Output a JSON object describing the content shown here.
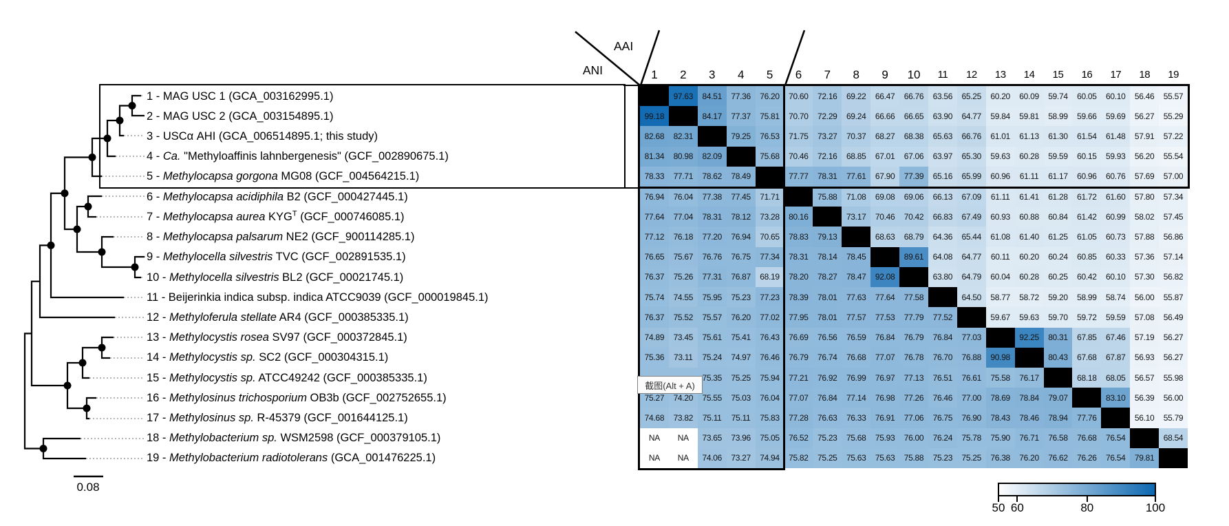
{
  "header": {
    "ani_label": "ANI",
    "aai_label": "AAI"
  },
  "tree": {
    "scale_bar_label": "0.08",
    "taxa": [
      {
        "segments": [
          {
            "t": "1 - MAG USC 1 (GCA_003162995.1)"
          }
        ]
      },
      {
        "segments": [
          {
            "t": "2 - MAG USC 2 (GCA_003154895.1)"
          }
        ]
      },
      {
        "segments": [
          {
            "t": "3 - USCα AHI (GCA_006514895.1; this study)"
          }
        ]
      },
      {
        "segments": [
          {
            "t": "4 - "
          },
          {
            "t": "Ca.",
            "i": 1
          },
          {
            "t": " \"Methyloaffinis lahnbergenesis\" (GCF_002890675.1)"
          }
        ]
      },
      {
        "segments": [
          {
            "t": "5 - "
          },
          {
            "t": "Methylocapsa gorgona",
            "i": 1
          },
          {
            "t": " MG08 (GCF_004564215.1)"
          }
        ]
      },
      {
        "segments": [
          {
            "t": "6 - "
          },
          {
            "t": "Methylocapsa acidiphila",
            "i": 1
          },
          {
            "t": " B2 (GCF_000427445.1)"
          }
        ]
      },
      {
        "segments": [
          {
            "t": "7 - "
          },
          {
            "t": "Methylocapsa aurea",
            "i": 1
          },
          {
            "t": " KYG"
          },
          {
            "t": "T",
            "sup": 1
          },
          {
            "t": " (GCF_000746085.1)"
          }
        ]
      },
      {
        "segments": [
          {
            "t": "8 - "
          },
          {
            "t": "Methylocapsa palsarum",
            "i": 1
          },
          {
            "t": " NE2 (GCF_900114285.1)"
          }
        ]
      },
      {
        "segments": [
          {
            "t": "9 - "
          },
          {
            "t": "Methylocella silvestris",
            "i": 1
          },
          {
            "t": " TVC (GCF_002891535.1)"
          }
        ]
      },
      {
        "segments": [
          {
            "t": "10 - "
          },
          {
            "t": "Methylocella silvestris",
            "i": 1
          },
          {
            "t": " BL2 (GCF_00021745.1)"
          }
        ]
      },
      {
        "segments": [
          {
            "t": "11 - Beijerinkia indica subsp. indica ATCC9039 (GCF_000019845.1)"
          }
        ]
      },
      {
        "segments": [
          {
            "t": "12 - "
          },
          {
            "t": "Methyloferula stellate",
            "i": 1
          },
          {
            "t": " AR4 (GCF_000385335.1)"
          }
        ]
      },
      {
        "segments": [
          {
            "t": "13 - "
          },
          {
            "t": "Methylocystis rosea",
            "i": 1
          },
          {
            "t": " SV97 (GCF_000372845.1)"
          }
        ]
      },
      {
        "segments": [
          {
            "t": "14 - "
          },
          {
            "t": "Methylocystis sp.",
            "i": 1
          },
          {
            "t": " SC2 (GCF_000304315.1)"
          }
        ]
      },
      {
        "segments": [
          {
            "t": "15 - "
          },
          {
            "t": "Methylocystis sp.",
            "i": 1
          },
          {
            "t": " ATCC49242 (GCF_000385335.1)"
          }
        ]
      },
      {
        "segments": [
          {
            "t": "16 - "
          },
          {
            "t": "Methylosinus trichosporium",
            "i": 1
          },
          {
            "t": " OB3b (GCF_002752655.1)"
          }
        ]
      },
      {
        "segments": [
          {
            "t": "17 - "
          },
          {
            "t": "Methylosinus sp.",
            "i": 1
          },
          {
            "t": " R-45379 (GCF_001644125.1)"
          }
        ]
      },
      {
        "segments": [
          {
            "t": "18 - "
          },
          {
            "t": "Methylobacterium sp.",
            "i": 1
          },
          {
            "t": " WSM2598 (GCF_000379105.1)"
          }
        ]
      },
      {
        "segments": [
          {
            "t": "19 - "
          },
          {
            "t": "Methylobacterium radiotolerans",
            "i": 1
          },
          {
            "t": " (GCA_001476225.1)"
          }
        ]
      }
    ]
  },
  "chart_data": {
    "type": "heatmap",
    "description": "Pairwise genome identity matrix: ANI values in lower-left triangle, AAI values in upper-right triangle; black diagonal = self; rows/columns follow tree taxa 1-19",
    "lower_triangle_label": "ANI",
    "upper_triangle_label": "AAI",
    "col_headers": [
      "1",
      "2",
      "3",
      "4",
      "5",
      "6",
      "7",
      "8",
      "9",
      "10",
      "11",
      "12",
      "13",
      "14",
      "15",
      "16",
      "17",
      "18",
      "19"
    ],
    "na_text": "NA",
    "values": [
      [
        null,
        97.63,
        84.51,
        77.36,
        76.2,
        70.6,
        72.16,
        69.22,
        66.47,
        66.76,
        63.56,
        65.25,
        60.2,
        60.09,
        59.74,
        60.05,
        60.1,
        56.46,
        55.57
      ],
      [
        99.18,
        null,
        84.17,
        77.37,
        75.81,
        70.7,
        72.29,
        69.24,
        66.66,
        66.65,
        63.9,
        64.77,
        59.84,
        59.81,
        58.99,
        59.66,
        59.69,
        56.27,
        55.29
      ],
      [
        82.68,
        82.31,
        null,
        79.25,
        76.53,
        71.75,
        73.27,
        70.37,
        68.27,
        68.38,
        65.63,
        66.76,
        61.01,
        61.13,
        61.3,
        61.54,
        61.48,
        57.91,
        57.22
      ],
      [
        81.34,
        80.98,
        82.09,
        null,
        75.68,
        70.46,
        72.16,
        68.85,
        67.01,
        67.06,
        63.97,
        65.3,
        59.63,
        60.28,
        59.59,
        60.15,
        59.93,
        56.2,
        55.54
      ],
      [
        78.33,
        77.71,
        78.62,
        78.49,
        null,
        77.77,
        78.31,
        77.61,
        67.9,
        77.39,
        65.16,
        65.99,
        60.96,
        61.11,
        61.17,
        60.96,
        60.76,
        57.69,
        57.0
      ],
      [
        76.94,
        76.04,
        77.38,
        77.45,
        71.71,
        null,
        75.88,
        71.08,
        69.08,
        69.06,
        66.13,
        67.09,
        61.11,
        61.41,
        61.28,
        61.72,
        61.6,
        57.8,
        57.34
      ],
      [
        77.64,
        77.04,
        78.31,
        78.12,
        73.28,
        80.16,
        null,
        73.17,
        70.46,
        70.42,
        66.83,
        67.49,
        60.93,
        60.88,
        60.84,
        61.42,
        60.99,
        58.02,
        57.45
      ],
      [
        77.12,
        76.18,
        77.2,
        76.94,
        70.65,
        78.83,
        79.13,
        null,
        68.63,
        68.79,
        64.36,
        65.44,
        61.08,
        61.4,
        61.25,
        61.05,
        60.73,
        57.88,
        56.86
      ],
      [
        76.65,
        75.67,
        76.76,
        76.75,
        77.34,
        78.31,
        78.14,
        78.45,
        null,
        89.61,
        64.08,
        64.77,
        60.11,
        60.2,
        60.24,
        60.85,
        60.33,
        57.36,
        57.14
      ],
      [
        76.37,
        75.26,
        77.31,
        76.87,
        68.19,
        78.2,
        78.27,
        78.47,
        92.08,
        null,
        63.8,
        64.79,
        60.04,
        60.28,
        60.25,
        60.42,
        60.1,
        57.3,
        56.82
      ],
      [
        75.74,
        74.55,
        75.95,
        75.23,
        77.23,
        78.39,
        78.01,
        77.63,
        77.64,
        77.58,
        null,
        64.5,
        58.77,
        58.72,
        59.2,
        58.99,
        58.74,
        56.0,
        55.87
      ],
      [
        76.37,
        75.52,
        75.57,
        76.2,
        77.02,
        77.95,
        78.01,
        77.57,
        77.53,
        77.79,
        77.52,
        null,
        59.67,
        59.63,
        59.7,
        59.72,
        59.59,
        57.08,
        56.49
      ],
      [
        74.89,
        73.45,
        75.61,
        75.41,
        76.43,
        76.69,
        76.56,
        76.59,
        76.84,
        76.79,
        76.84,
        77.03,
        null,
        92.25,
        80.31,
        67.85,
        67.46,
        57.19,
        56.27
      ],
      [
        75.36,
        73.11,
        75.24,
        74.97,
        76.46,
        76.79,
        76.74,
        76.68,
        77.07,
        76.78,
        76.7,
        76.88,
        90.98,
        null,
        80.43,
        67.68,
        67.87,
        56.93,
        56.27
      ],
      [
        null,
        null,
        75.35,
        75.25,
        75.94,
        77.21,
        76.92,
        76.99,
        76.97,
        77.13,
        76.51,
        76.61,
        75.58,
        76.17,
        null,
        68.18,
        68.05,
        56.57,
        55.98
      ],
      [
        75.27,
        74.2,
        75.55,
        75.03,
        76.04,
        77.07,
        76.84,
        77.14,
        76.98,
        77.26,
        76.46,
        77.0,
        78.69,
        78.84,
        79.07,
        null,
        83.1,
        56.39,
        56.0
      ],
      [
        74.68,
        73.82,
        75.11,
        75.11,
        75.83,
        77.28,
        76.63,
        76.33,
        76.91,
        77.06,
        76.75,
        76.9,
        78.43,
        78.46,
        78.94,
        77.76,
        null,
        56.1,
        55.79
      ],
      [
        "NA",
        "NA",
        73.65,
        73.96,
        75.05,
        76.52,
        75.23,
        75.68,
        75.93,
        76.0,
        76.24,
        75.78,
        75.9,
        76.71,
        76.58,
        76.68,
        76.54,
        null,
        68.54
      ],
      [
        "NA",
        "NA",
        74.06,
        73.27,
        74.94,
        75.82,
        75.25,
        75.63,
        75.63,
        75.88,
        75.23,
        75.25,
        76.38,
        76.2,
        76.62,
        76.26,
        76.54,
        79.81,
        null
      ]
    ],
    "color_scale": {
      "min": 50,
      "max": 100,
      "min_color": "#ffffff",
      "max_color": "#0d68b1",
      "ticks": [
        {
          "label": "50",
          "pos": 0
        },
        {
          "label": "60",
          "pos": 0.12
        },
        {
          "label": "80",
          "pos": 0.565
        },
        {
          "label": "100",
          "pos": 1
        }
      ],
      "legend_position": "bottom-right"
    }
  },
  "tooltip": {
    "text": "截图(Alt + A)"
  }
}
